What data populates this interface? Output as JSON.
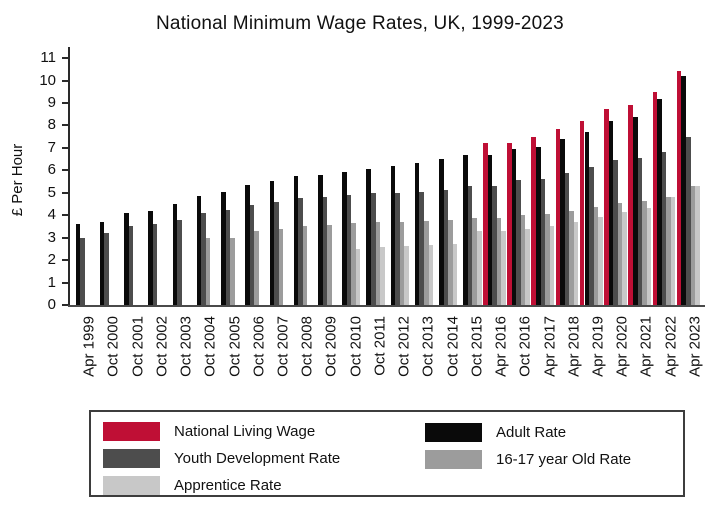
{
  "chart_data": {
    "type": "bar",
    "title": "National Minimum Wage Rates, UK, 1999-2023",
    "xlabel": "",
    "ylabel": "£ Per Hour",
    "ylim": [
      0,
      11
    ],
    "yticks": [
      0,
      1,
      2,
      3,
      4,
      5,
      6,
      7,
      8,
      9,
      10,
      11
    ],
    "grid": false,
    "legend_position": "bottom-box",
    "categories": [
      "Apr 1999",
      "Oct 2000",
      "Oct 2001",
      "Oct 2002",
      "Oct 2003",
      "Oct 2004",
      "Oct 2005",
      "Oct 2006",
      "Oct 2007",
      "Oct 2008",
      "Oct 2009",
      "Oct 2010",
      "Oct 2011",
      "Oct 2012",
      "Oct 2013",
      "Oct 2014",
      "Oct 2015",
      "Apr 2016",
      "Oct 2016",
      "Apr 2017",
      "Apr 2018",
      "Apr 2019",
      "Apr 2020",
      "Apr 2021",
      "Apr 2022",
      "Apr 2023"
    ],
    "series": [
      {
        "name": "National Living Wage",
        "color": "#bf0f35",
        "values": [
          null,
          null,
          null,
          null,
          null,
          null,
          null,
          null,
          null,
          null,
          null,
          null,
          null,
          null,
          null,
          null,
          null,
          7.2,
          7.2,
          7.5,
          7.83,
          8.21,
          8.72,
          8.91,
          9.5,
          10.42
        ]
      },
      {
        "name": "Adult Rate",
        "color": "#0a0a0a",
        "values": [
          3.6,
          3.7,
          4.1,
          4.2,
          4.5,
          4.85,
          5.05,
          5.35,
          5.52,
          5.73,
          5.8,
          5.93,
          6.08,
          6.19,
          6.31,
          6.5,
          6.7,
          6.7,
          6.95,
          7.05,
          7.38,
          7.7,
          8.2,
          8.36,
          9.18,
          10.18
        ]
      },
      {
        "name": "Youth Development Rate",
        "color": "#4d4d4d",
        "values": [
          3.0,
          3.2,
          3.5,
          3.6,
          3.8,
          4.1,
          4.25,
          4.45,
          4.6,
          4.77,
          4.83,
          4.92,
          4.98,
          4.98,
          5.03,
          5.13,
          5.3,
          5.3,
          5.55,
          5.6,
          5.9,
          6.15,
          6.45,
          6.56,
          6.83,
          7.49
        ]
      },
      {
        "name": "16-17 year Old Rate",
        "color": "#9c9c9c",
        "values": [
          null,
          null,
          null,
          null,
          null,
          3.0,
          3.0,
          3.3,
          3.4,
          3.53,
          3.57,
          3.64,
          3.68,
          3.68,
          3.72,
          3.79,
          3.87,
          3.87,
          4.0,
          4.05,
          4.2,
          4.35,
          4.55,
          4.62,
          4.81,
          5.28
        ]
      },
      {
        "name": "Apprentice Rate",
        "color": "#c8c8c8",
        "values": [
          null,
          null,
          null,
          null,
          null,
          null,
          null,
          null,
          null,
          null,
          null,
          2.5,
          2.6,
          2.65,
          2.68,
          2.73,
          3.3,
          3.3,
          3.4,
          3.5,
          3.7,
          3.9,
          4.15,
          4.3,
          4.81,
          5.28
        ]
      }
    ],
    "legend_columns": [
      [
        0,
        2,
        4
      ],
      [
        1,
        3
      ]
    ]
  }
}
